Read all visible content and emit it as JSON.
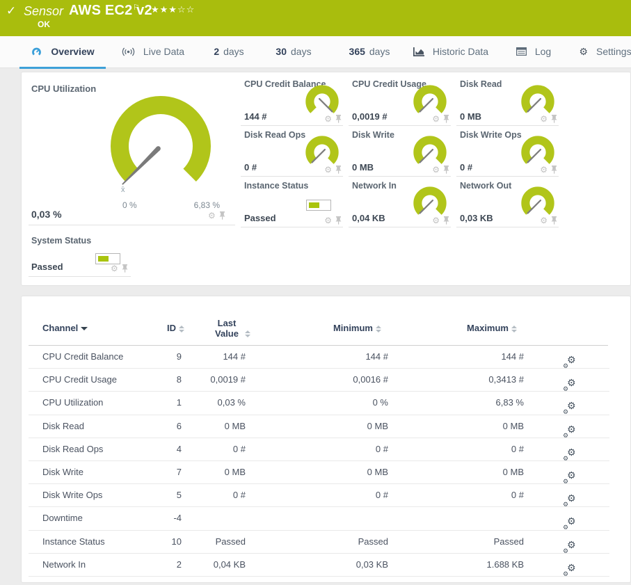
{
  "title_bar": {
    "check_icon": "✓",
    "sensor_label": "Sensor",
    "sensor_name": "AWS EC2 v2",
    "flag_icon": "⚐",
    "stars": "★★★☆☆",
    "status": "OK",
    "bg_color": "#a9bd0d"
  },
  "tabs": [
    {
      "label": "Overview",
      "icon": "gauge",
      "active": true
    },
    {
      "label": "Live Data",
      "icon": "live"
    },
    {
      "prefix": "2",
      "label": "days"
    },
    {
      "prefix": "30",
      "label": "days"
    },
    {
      "prefix": "365",
      "label": "days"
    },
    {
      "label": "Historic Data",
      "icon": "chart"
    },
    {
      "label": "Log",
      "icon": "log"
    },
    {
      "label": "Settings",
      "icon": "gear"
    }
  ],
  "gauges": {
    "gauge_color": "#b1c51a",
    "needle_color": "#7e7e7e",
    "main": {
      "title": "CPU Utilization",
      "value": "0,03 %",
      "min_label": "0 %",
      "max_label": "6,83 %",
      "mean_marker": "x̄",
      "needle": "min"
    },
    "cells": [
      {
        "title": "CPU Credit Balance",
        "value": "144 #",
        "widget": "gauge",
        "needle": "max"
      },
      {
        "title": "CPU Credit Usage",
        "value": "0,0019 #",
        "widget": "gauge",
        "needle": "min"
      },
      {
        "title": "Disk Read",
        "value": "0 MB",
        "widget": "gauge",
        "needle": "min"
      },
      {
        "title": "Disk Read Ops",
        "value": "0 #",
        "widget": "gauge",
        "needle": "min"
      },
      {
        "title": "Disk Write",
        "value": "0 MB",
        "widget": "gauge",
        "needle": "min"
      },
      {
        "title": "Disk Write Ops",
        "value": "0 #",
        "widget": "gauge",
        "needle": "min"
      },
      {
        "title": "Instance Status",
        "value": "Passed",
        "widget": "bar"
      },
      {
        "title": "Network In",
        "value": "0,04 KB",
        "widget": "gauge",
        "needle": "min"
      },
      {
        "title": "Network Out",
        "value": "0,03 KB",
        "widget": "gauge",
        "needle": "min"
      }
    ],
    "system_cell": {
      "title": "System Status",
      "value": "Passed",
      "widget": "bar"
    }
  },
  "table": {
    "columns": [
      {
        "label": "Channel",
        "sort": "active"
      },
      {
        "label": "ID",
        "sort": "both"
      },
      {
        "label": "Last Value",
        "sort": "both"
      },
      {
        "label": "Minimum",
        "sort": "both"
      },
      {
        "label": "Maximum",
        "sort": "both"
      }
    ],
    "rows": [
      {
        "channel": "CPU Credit Balance",
        "id": "9",
        "last": "144 #",
        "min": "144 #",
        "max": "144 #"
      },
      {
        "channel": "CPU Credit Usage",
        "id": "8",
        "last": "0,0019 #",
        "min": "0,0016 #",
        "max": "0,3413 #"
      },
      {
        "channel": "CPU Utilization",
        "id": "1",
        "last": "0,03 %",
        "min": "0 %",
        "max": "6,83 %"
      },
      {
        "channel": "Disk Read",
        "id": "6",
        "last": "0 MB",
        "min": "0 MB",
        "max": "0 MB"
      },
      {
        "channel": "Disk Read Ops",
        "id": "4",
        "last": "0 #",
        "min": "0 #",
        "max": "0 #"
      },
      {
        "channel": "Disk Write",
        "id": "7",
        "last": "0 MB",
        "min": "0 MB",
        "max": "0 MB"
      },
      {
        "channel": "Disk Write Ops",
        "id": "5",
        "last": "0 #",
        "min": "0 #",
        "max": "0 #"
      },
      {
        "channel": "Downtime",
        "id": "-4",
        "last": "",
        "min": "",
        "max": ""
      },
      {
        "channel": "Instance Status",
        "id": "10",
        "last": "Passed",
        "min": "Passed",
        "max": "Passed"
      },
      {
        "channel": "Network In",
        "id": "2",
        "last": "0,04 KB",
        "min": "0,03 KB",
        "max": "1.688 KB"
      }
    ]
  }
}
